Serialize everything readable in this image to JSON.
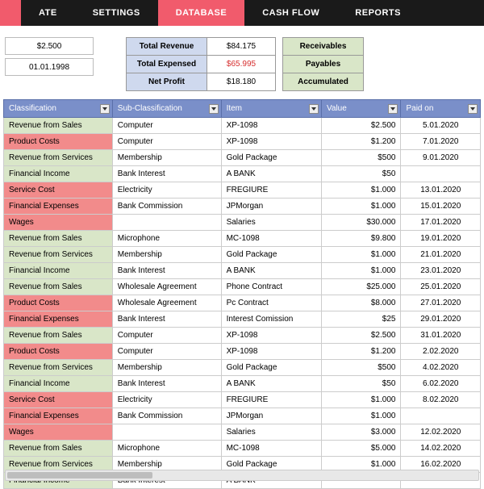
{
  "tabs": {
    "t0": "ATE",
    "t1": "SETTINGS",
    "t2": "DATABASE",
    "t3": "CASH FLOW",
    "t4": "REPORTS"
  },
  "left": {
    "amount": "$2.500",
    "date": "01.01.1998"
  },
  "summary": {
    "rev_label": "Total Revenue",
    "rev_val": "$84.175",
    "exp_label": "Total Expensed",
    "exp_val": "$65.995",
    "net_label": "Net Profit",
    "net_val": "$18.180",
    "recv": "Receivables",
    "pay": "Payables",
    "acc": "Accumulated"
  },
  "headers": {
    "h0": "Classification",
    "h1": "Sub-Classification",
    "h2": "Item",
    "h3": "Value",
    "h4": "Paid on"
  },
  "rows": [
    {
      "cls": "Revenue from Sales",
      "c": "green",
      "sub": "Computer",
      "item": "XP-1098",
      "val": "$2.500",
      "paid": "5.01.2020"
    },
    {
      "cls": "Product Costs",
      "c": "red",
      "sub": "Computer",
      "item": "XP-1098",
      "val": "$1.200",
      "paid": "7.01.2020"
    },
    {
      "cls": "Revenue from Services",
      "c": "green",
      "sub": "Membership",
      "item": "Gold Package",
      "val": "$500",
      "paid": "9.01.2020"
    },
    {
      "cls": "Financial Income",
      "c": "green",
      "sub": "Bank Interest",
      "item": "A BANK",
      "val": "$50",
      "paid": ""
    },
    {
      "cls": "Service Cost",
      "c": "red",
      "sub": "Electricity",
      "item": "FREGIURE",
      "val": "$1.000",
      "paid": "13.01.2020"
    },
    {
      "cls": "Financial Expenses",
      "c": "red",
      "sub": "Bank Commission",
      "item": "JPMorgan",
      "val": "$1.000",
      "paid": "15.01.2020"
    },
    {
      "cls": "Wages",
      "c": "red",
      "sub": "",
      "item": "Salaries",
      "val": "$30.000",
      "paid": "17.01.2020"
    },
    {
      "cls": "Revenue from Sales",
      "c": "green",
      "sub": "Microphone",
      "item": "MC-1098",
      "val": "$9.800",
      "paid": "19.01.2020"
    },
    {
      "cls": "Revenue from Services",
      "c": "green",
      "sub": "Membership",
      "item": "Gold Package",
      "val": "$1.000",
      "paid": "21.01.2020"
    },
    {
      "cls": "Financial Income",
      "c": "green",
      "sub": "Bank Interest",
      "item": "A BANK",
      "val": "$1.000",
      "paid": "23.01.2020"
    },
    {
      "cls": "Revenue from Sales",
      "c": "green",
      "sub": "Wholesale Agreement",
      "item": "Phone Contract",
      "val": "$25.000",
      "paid": "25.01.2020"
    },
    {
      "cls": "Product Costs",
      "c": "red",
      "sub": "Wholesale Agreement",
      "item": "Pc Contract",
      "val": "$8.000",
      "paid": "27.01.2020"
    },
    {
      "cls": "Financial Expenses",
      "c": "red",
      "sub": "Bank Interest",
      "item": "Interest Comission",
      "val": "$25",
      "paid": "29.01.2020"
    },
    {
      "cls": "Revenue from Sales",
      "c": "green",
      "sub": "Computer",
      "item": "XP-1098",
      "val": "$2.500",
      "paid": "31.01.2020"
    },
    {
      "cls": "Product Costs",
      "c": "red",
      "sub": "Computer",
      "item": "XP-1098",
      "val": "$1.200",
      "paid": "2.02.2020"
    },
    {
      "cls": "Revenue from Services",
      "c": "green",
      "sub": "Membership",
      "item": "Gold Package",
      "val": "$500",
      "paid": "4.02.2020"
    },
    {
      "cls": "Financial Income",
      "c": "green",
      "sub": "Bank Interest",
      "item": "A BANK",
      "val": "$50",
      "paid": "6.02.2020"
    },
    {
      "cls": "Service Cost",
      "c": "red",
      "sub": "Electricity",
      "item": "FREGIURE",
      "val": "$1.000",
      "paid": "8.02.2020"
    },
    {
      "cls": "Financial Expenses",
      "c": "red",
      "sub": "Bank Commission",
      "item": "JPMorgan",
      "val": "$1.000",
      "paid": ""
    },
    {
      "cls": "Wages",
      "c": "red",
      "sub": "",
      "item": "Salaries",
      "val": "$3.000",
      "paid": "12.02.2020"
    },
    {
      "cls": "Revenue from Sales",
      "c": "green",
      "sub": "Microphone",
      "item": "MC-1098",
      "val": "$5.000",
      "paid": "14.02.2020"
    },
    {
      "cls": "Revenue from Services",
      "c": "green",
      "sub": "Membership",
      "item": "Gold Package",
      "val": "$1.000",
      "paid": "16.02.2020"
    },
    {
      "cls": "Financial Income",
      "c": "green",
      "sub": "Bank Interest",
      "item": "A BANK",
      "val": "",
      "paid": ""
    }
  ]
}
